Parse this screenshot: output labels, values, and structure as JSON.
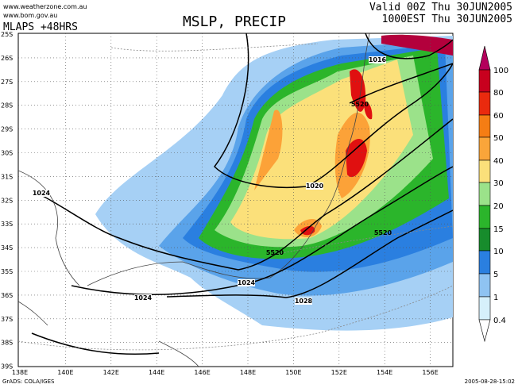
{
  "header": {
    "site1": "www.weatherzone.com.au",
    "site2": "www.bom.gov.au",
    "model": "MLAPS +48HRS",
    "title": "MSLP, PRECIP",
    "valid": "Valid 00Z Thu 30JUN2005",
    "local": "1000EST Thu 30JUN2005"
  },
  "lat_labels": [
    "25S",
    "26S",
    "27S",
    "28S",
    "29S",
    "30S",
    "31S",
    "32S",
    "33S",
    "34S",
    "35S",
    "36S",
    "37S",
    "38S",
    "39S"
  ],
  "lon_labels": [
    "138E",
    "140E",
    "142E",
    "144E",
    "146E",
    "148E",
    "150E",
    "152E",
    "154E",
    "156E"
  ],
  "contour_labels": [
    "1016",
    "1020",
    "1024",
    "1024",
    "1024",
    "1028",
    "5520",
    "5520",
    "5520"
  ],
  "colorbar": [
    100,
    80,
    60,
    50,
    40,
    30,
    20,
    15,
    10,
    5,
    1,
    0.4
  ],
  "footer": {
    "credit": "GrADS: COLA/IGES",
    "timestamp": "2005-08-28-15:02"
  }
}
